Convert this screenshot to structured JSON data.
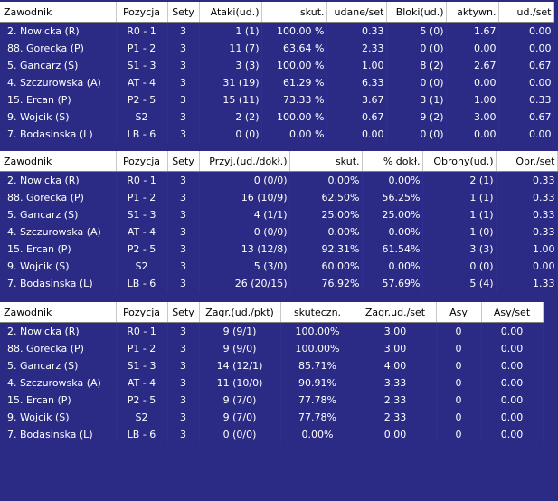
{
  "attack": {
    "headers": [
      "Zawodnik",
      "Pozycja",
      "Sety",
      "Ataki(ud.)",
      "skut.",
      "udane/set",
      "Bloki(ud.)",
      "aktywn.",
      "ud./set"
    ],
    "rows": [
      [
        "2. Nowicka (R)",
        "R0 - 1",
        "3",
        "1 (1)",
        "100.00 %",
        "0.33",
        "5 (0)",
        "1.67",
        "0.00"
      ],
      [
        "88. Gorecka (P)",
        "P1 - 2",
        "3",
        "11 (7)",
        "63.64 %",
        "2.33",
        "0 (0)",
        "0.00",
        "0.00"
      ],
      [
        "5. Gancarz (S)",
        "S1 - 3",
        "3",
        "3 (3)",
        "100.00 %",
        "1.00",
        "8 (2)",
        "2.67",
        "0.67"
      ],
      [
        "4. Szczurowska (A)",
        "AT - 4",
        "3",
        "31 (19)",
        "61.29 %",
        "6.33",
        "0 (0)",
        "0.00",
        "0.00"
      ],
      [
        "15. Ercan (P)",
        "P2 - 5",
        "3",
        "15 (11)",
        "73.33 %",
        "3.67",
        "3 (1)",
        "1.00",
        "0.33"
      ],
      [
        "9. Wojcik (S)",
        "S2",
        "3",
        "2 (2)",
        "100.00 %",
        "0.67",
        "9 (2)",
        "3.00",
        "0.67"
      ],
      [
        "7. Bodasinska (L)",
        "LB - 6",
        "3",
        "0 (0)",
        "0.00 %",
        "0.00",
        "0 (0)",
        "0.00",
        "0.00"
      ]
    ]
  },
  "reception": {
    "headers": [
      "Zawodnik",
      "Pozycja",
      "Sety",
      "Przyj.(ud./dokł.)",
      "skut.",
      "% dokł.",
      "Obrony(ud.)",
      "Obr./set"
    ],
    "rows": [
      [
        "2. Nowicka (R)",
        "R0 - 1",
        "3",
        "0 (0/0)",
        "0.00%",
        "0.00%",
        "2 (1)",
        "0.33"
      ],
      [
        "88. Gorecka (P)",
        "P1 - 2",
        "3",
        "16 (10/9)",
        "62.50%",
        "56.25%",
        "1 (1)",
        "0.33"
      ],
      [
        "5. Gancarz (S)",
        "S1 - 3",
        "3",
        "4 (1/1)",
        "25.00%",
        "25.00%",
        "1 (1)",
        "0.33"
      ],
      [
        "4. Szczurowska (A)",
        "AT - 4",
        "3",
        "0 (0/0)",
        "0.00%",
        "0.00%",
        "1 (0)",
        "0.33"
      ],
      [
        "15. Ercan (P)",
        "P2 - 5",
        "3",
        "13 (12/8)",
        "92.31%",
        "61.54%",
        "3 (3)",
        "1.00"
      ],
      [
        "9. Wojcik (S)",
        "S2",
        "3",
        "5 (3/0)",
        "60.00%",
        "0.00%",
        "0 (0)",
        "0.00"
      ],
      [
        "7. Bodasinska (L)",
        "LB - 6",
        "3",
        "26 (20/15)",
        "76.92%",
        "57.69%",
        "5 (4)",
        "1.33"
      ]
    ]
  },
  "serve": {
    "headers": [
      "Zawodnik",
      "Pozycja",
      "Sety",
      "Zagr.(ud./pkt)",
      "skuteczn.",
      "Zagr.ud./set",
      "Asy",
      "Asy/set"
    ],
    "rows": [
      [
        "2. Nowicka (R)",
        "R0 - 1",
        "3",
        "9 (9/1)",
        "100.00%",
        "3.00",
        "0",
        "0.00"
      ],
      [
        "88. Gorecka (P)",
        "P1 - 2",
        "3",
        "9 (9/0)",
        "100.00%",
        "3.00",
        "0",
        "0.00"
      ],
      [
        "5. Gancarz (S)",
        "S1 - 3",
        "3",
        "14 (12/1)",
        "85.71%",
        "4.00",
        "0",
        "0.00"
      ],
      [
        "4. Szczurowska (A)",
        "AT - 4",
        "3",
        "11 (10/0)",
        "90.91%",
        "3.33",
        "0",
        "0.00"
      ],
      [
        "15. Ercan (P)",
        "P2 - 5",
        "3",
        "9 (7/0)",
        "77.78%",
        "2.33",
        "0",
        "0.00"
      ],
      [
        "9. Wojcik (S)",
        "S2",
        "3",
        "9 (7/0)",
        "77.78%",
        "2.33",
        "0",
        "0.00"
      ],
      [
        "7. Bodasinska (L)",
        "LB - 6",
        "3",
        "0 (0/0)",
        "0.00%",
        "0.00",
        "0",
        "0.00"
      ]
    ]
  }
}
